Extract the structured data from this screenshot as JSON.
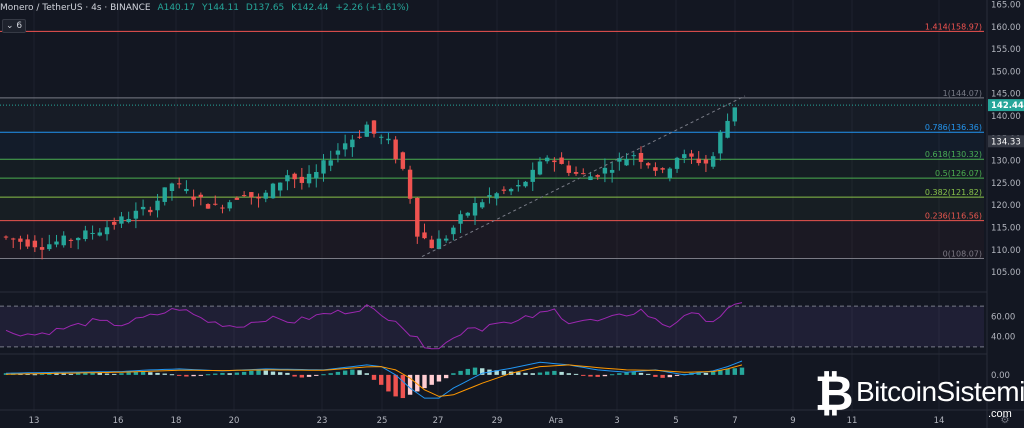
{
  "header": {
    "symbol": "Monero / TetherUS · 4s · BINANCE",
    "open": "A140.17",
    "high": "Y144.11",
    "low": "D137.65",
    "close": "K142.44",
    "change": "+2.26 (+1.61%)"
  },
  "indicator_tag": "6",
  "watermark": {
    "brand": "BitcoinSistemi",
    "suffix": ".com"
  },
  "colors": {
    "background": "#131722",
    "up": "#26a69a",
    "down": "#ef5350",
    "rsi": "#9c27b0",
    "macd": "#2196f3",
    "signal": "#ff9800"
  },
  "chart_data": {
    "type": "candlestick",
    "price_axis": {
      "range": [
        101,
        166
      ],
      "ticks": [
        "165.00",
        "160.00",
        "155.00",
        "150.00",
        "145.00",
        "140.00",
        "135.00",
        "130.00",
        "125.00",
        "120.00",
        "115.00",
        "110.00",
        "105.00"
      ],
      "current_price_label": "142.44",
      "marker_label": "134.33"
    },
    "fib_levels": [
      {
        "label": "1.414(158.97)",
        "value": 158.97,
        "color": "#ef5350"
      },
      {
        "label": "1(144.07)",
        "value": 144.07,
        "color": "#787b86"
      },
      {
        "label": "0.786(136.36)",
        "value": 136.36,
        "color": "#2196f3"
      },
      {
        "label": "0.618(130.32)",
        "value": 130.32,
        "color": "#4caf50"
      },
      {
        "label": "0.5(126.07)",
        "value": 126.07,
        "color": "#4caf50"
      },
      {
        "label": "0.382(121.82)",
        "value": 121.82,
        "color": "#8bc34a"
      },
      {
        "label": "0.236(116.56)",
        "value": 116.56,
        "color": "#ef5350"
      },
      {
        "label": "0(108.07)",
        "value": 108.07,
        "color": "#787b86"
      }
    ],
    "time_axis": {
      "labels": [
        "13",
        "16",
        "18",
        "20",
        "23",
        "25",
        "27",
        "29",
        "Ara",
        "3",
        "5",
        "7",
        "9",
        "11",
        "14"
      ]
    },
    "price_path": [
      [
        0,
        113
      ],
      [
        6,
        111
      ],
      [
        10,
        112.5
      ],
      [
        14,
        114.5
      ],
      [
        18,
        117.5
      ],
      [
        21,
        119.5
      ],
      [
        23,
        123
      ],
      [
        24,
        125
      ],
      [
        26,
        123
      ],
      [
        28,
        121
      ],
      [
        30,
        119.5
      ],
      [
        32,
        121
      ],
      [
        34,
        123
      ],
      [
        36,
        121
      ],
      [
        38,
        124
      ],
      [
        40,
        127
      ],
      [
        42,
        125
      ],
      [
        44,
        127
      ],
      [
        46,
        131
      ],
      [
        48,
        134
      ],
      [
        50,
        136
      ],
      [
        51,
        138
      ],
      [
        52,
        136
      ],
      [
        53,
        135
      ],
      [
        54,
        134
      ],
      [
        56,
        128
      ],
      [
        57,
        122
      ],
      [
        58,
        114
      ],
      [
        60,
        111
      ],
      [
        62,
        113
      ],
      [
        64,
        117
      ],
      [
        66,
        120
      ],
      [
        68,
        122
      ],
      [
        70,
        123
      ],
      [
        72,
        124
      ],
      [
        74,
        127
      ],
      [
        76,
        131
      ],
      [
        78,
        129
      ],
      [
        80,
        127
      ],
      [
        82,
        126.5
      ],
      [
        84,
        128
      ],
      [
        86,
        130
      ],
      [
        88,
        131.5
      ],
      [
        90,
        129.5
      ],
      [
        92,
        127
      ],
      [
        94,
        131
      ],
      [
        96,
        130.5
      ],
      [
        98,
        129.5
      ],
      [
        99,
        131
      ],
      [
        100,
        136
      ],
      [
        101,
        139
      ],
      [
        102,
        142.4
      ]
    ],
    "rsi": {
      "levels": [
        "60.00",
        "40.00"
      ],
      "band": [
        70,
        30
      ],
      "range": [
        25,
        80
      ],
      "path": [
        [
          0,
          45
        ],
        [
          4,
          42
        ],
        [
          8,
          48
        ],
        [
          12,
          55
        ],
        [
          16,
          52
        ],
        [
          20,
          60
        ],
        [
          24,
          68
        ],
        [
          28,
          55
        ],
        [
          32,
          50
        ],
        [
          36,
          58
        ],
        [
          40,
          55
        ],
        [
          44,
          62
        ],
        [
          48,
          66
        ],
        [
          50,
          70
        ],
        [
          52,
          60
        ],
        [
          54,
          58
        ],
        [
          56,
          42
        ],
        [
          58,
          32
        ],
        [
          60,
          30
        ],
        [
          62,
          38
        ],
        [
          64,
          50
        ],
        [
          66,
          48
        ],
        [
          68,
          56
        ],
        [
          70,
          52
        ],
        [
          72,
          58
        ],
        [
          74,
          62
        ],
        [
          76,
          66
        ],
        [
          78,
          55
        ],
        [
          80,
          56
        ],
        [
          82,
          55
        ],
        [
          84,
          58
        ],
        [
          86,
          62
        ],
        [
          88,
          66
        ],
        [
          90,
          56
        ],
        [
          92,
          50
        ],
        [
          94,
          62
        ],
        [
          96,
          60
        ],
        [
          98,
          56
        ],
        [
          100,
          66
        ],
        [
          102,
          72
        ]
      ]
    },
    "macd": {
      "zero_label": "0.00",
      "range": [
        -10,
        6
      ],
      "hist": [
        0.5,
        0.6,
        0.4,
        0.3,
        0.2,
        0.4,
        0.6,
        0.5,
        0.4,
        0.3,
        0.5,
        0.7,
        0.8,
        0.6,
        0.4,
        0.3,
        0.5,
        0.7,
        0.9,
        1.0,
        0.8,
        0.6,
        0.4,
        0.2,
        -0.3,
        -0.5,
        -0.4,
        -0.2,
        0.2,
        0.4,
        0.6,
        0.5,
        0.7,
        0.9,
        1.2,
        1.5,
        1.3,
        1.0,
        0.8,
        0.6,
        -0.5,
        -0.8,
        -0.6,
        -0.3,
        0.2,
        0.5,
        0.9,
        1.3,
        1.6,
        1.4,
        0.5,
        -1.5,
        -3.0,
        -5.0,
        -6.5,
        -7.0,
        -6.0,
        -5.0,
        -4.0,
        -3.0,
        -2.0,
        -1.0,
        0.5,
        1.2,
        1.8,
        2.2,
        2.0,
        1.6,
        1.4,
        1.2,
        1.0,
        0.8,
        0.6,
        0.5,
        0.7,
        1.0,
        1.2,
        0.9,
        0.5,
        0.3,
        -0.3,
        -0.5,
        -0.6,
        -0.4,
        0.2,
        0.5,
        0.7,
        0.9,
        0.6,
        0.3,
        -0.6,
        -0.9,
        -0.7,
        -0.3,
        0.3,
        0.6,
        0.8,
        0.6,
        0.9,
        1.4,
        1.8,
        2.0,
        2.2
      ],
      "macd_path": [
        [
          0,
          0.5
        ],
        [
          8,
          0.8
        ],
        [
          16,
          1
        ],
        [
          20,
          1.5
        ],
        [
          24,
          1.8
        ],
        [
          30,
          1.2
        ],
        [
          36,
          1.8
        ],
        [
          44,
          1.5
        ],
        [
          50,
          3
        ],
        [
          52,
          2.5
        ],
        [
          54,
          0
        ],
        [
          56,
          -4
        ],
        [
          58,
          -7
        ],
        [
          60,
          -7
        ],
        [
          62,
          -4
        ],
        [
          66,
          0.5
        ],
        [
          70,
          2
        ],
        [
          74,
          3.8
        ],
        [
          78,
          3
        ],
        [
          82,
          1.5
        ],
        [
          86,
          0.8
        ],
        [
          90,
          1.5
        ],
        [
          94,
          0
        ],
        [
          98,
          1.2
        ],
        [
          100,
          2.5
        ],
        [
          102,
          4.2
        ]
      ],
      "signal_path": [
        [
          0,
          0.2
        ],
        [
          8,
          0.5
        ],
        [
          16,
          0.8
        ],
        [
          20,
          1.1
        ],
        [
          24,
          1.4
        ],
        [
          30,
          1.3
        ],
        [
          36,
          1.5
        ],
        [
          44,
          1.4
        ],
        [
          50,
          2.4
        ],
        [
          52,
          2.5
        ],
        [
          54,
          1.5
        ],
        [
          56,
          -1
        ],
        [
          58,
          -4.5
        ],
        [
          60,
          -6.5
        ],
        [
          62,
          -6
        ],
        [
          66,
          -2.5
        ],
        [
          70,
          0.5
        ],
        [
          74,
          2.5
        ],
        [
          78,
          3
        ],
        [
          82,
          2.2
        ],
        [
          86,
          1.5
        ],
        [
          90,
          1.4
        ],
        [
          94,
          0.8
        ],
        [
          98,
          1
        ],
        [
          100,
          1.8
        ],
        [
          102,
          3
        ]
      ]
    }
  }
}
